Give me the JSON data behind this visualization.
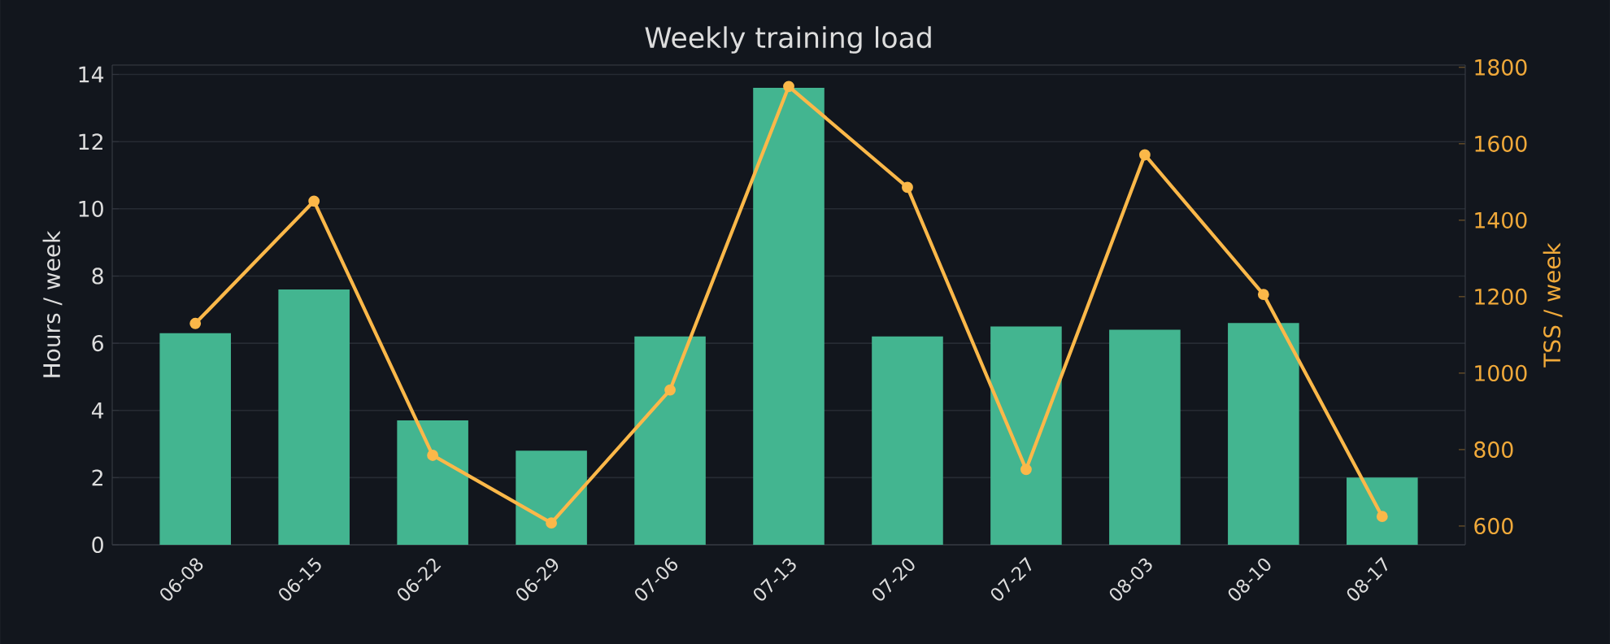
{
  "chart_data": {
    "type": "bar",
    "title": "Weekly training load",
    "categories": [
      "06-08",
      "06-15",
      "06-22",
      "06-29",
      "07-06",
      "07-13",
      "07-20",
      "07-27",
      "08-03",
      "08-10",
      "08-17"
    ],
    "series": [
      {
        "color": "#43b590",
        "values": [
          6.3,
          7.6,
          3.7,
          2.8,
          6.2,
          13.6,
          6.2,
          6.5,
          6.4,
          6.6,
          2.0
        ]
      },
      {
        "type": "line",
        "axis": "y2",
        "color": "#fbb849",
        "marker": "circle",
        "line_style": "solid",
        "values": [
          1130,
          1450,
          785,
          608,
          956,
          1750,
          1486,
          748,
          1571,
          1206,
          625
        ]
      }
    ],
    "ylabel": "Hours / week",
    "y2label": "TSS / week",
    "ylim": [
      0,
      14.28
    ],
    "yticks": [
      0,
      2,
      4,
      6,
      8,
      10,
      12,
      14
    ],
    "y2lim": [
      551,
      1806
    ],
    "y2ticks": [
      600,
      800,
      1000,
      1200,
      1400,
      1600,
      1800
    ],
    "grid": "y"
  }
}
